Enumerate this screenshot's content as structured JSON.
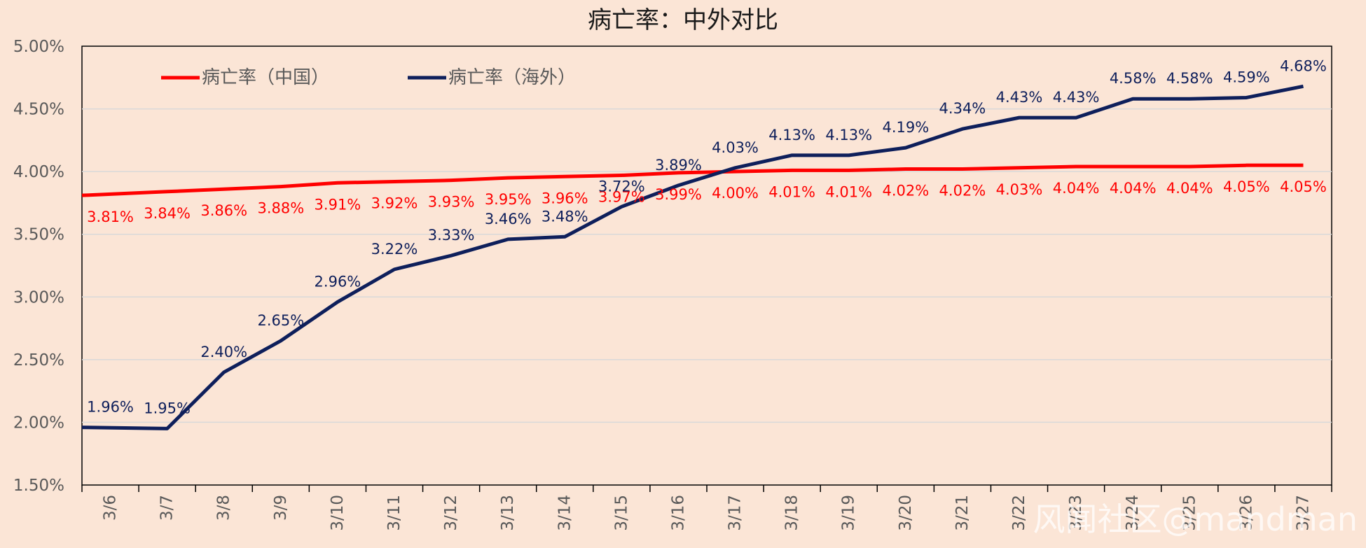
{
  "chart_data": {
    "type": "line",
    "title": "病亡率：中外对比",
    "xlabel": "",
    "ylabel": "",
    "ylim": [
      1.5,
      5.0
    ],
    "ytick_labels": [
      "1.50%",
      "2.00%",
      "2.50%",
      "3.00%",
      "3.50%",
      "4.00%",
      "4.50%",
      "5.00%"
    ],
    "categories": [
      "3/6",
      "3/7",
      "3/8",
      "3/9",
      "3/10",
      "3/11",
      "3/12",
      "3/13",
      "3/14",
      "3/15",
      "3/16",
      "3/17",
      "3/18",
      "3/19",
      "3/20",
      "3/21",
      "3/22",
      "3/23",
      "3/24",
      "3/25",
      "3/26",
      "3/27"
    ],
    "legend_position": "top-left",
    "grid": true,
    "series": [
      {
        "name": "病亡率（中国）",
        "color": "#ff0000",
        "values": [
          3.81,
          3.84,
          3.86,
          3.88,
          3.91,
          3.92,
          3.93,
          3.95,
          3.96,
          3.97,
          3.99,
          4.0,
          4.01,
          4.01,
          4.02,
          4.02,
          4.03,
          4.04,
          4.04,
          4.04,
          4.05,
          4.05
        ],
        "labels": [
          "3.81%",
          "3.84%",
          "3.86%",
          "3.88%",
          "3.91%",
          "3.92%",
          "3.93%",
          "3.95%",
          "3.96%",
          "3.97%",
          "3.99%",
          "4.00%",
          "4.01%",
          "4.01%",
          "4.02%",
          "4.02%",
          "4.03%",
          "4.04%",
          "4.04%",
          "4.04%",
          "4.05%",
          "4.05%"
        ]
      },
      {
        "name": "病亡率（海外）",
        "color": "#0e1f5b",
        "values": [
          1.96,
          1.95,
          2.4,
          2.65,
          2.96,
          3.22,
          3.33,
          3.46,
          3.48,
          3.72,
          3.89,
          4.03,
          4.13,
          4.13,
          4.19,
          4.34,
          4.43,
          4.43,
          4.58,
          4.58,
          4.59,
          4.68
        ],
        "labels": [
          "1.96%",
          "1.95%",
          "2.40%",
          "2.65%",
          "2.96%",
          "3.22%",
          "3.33%",
          "3.46%",
          "3.48%",
          "3.72%",
          "3.89%",
          "4.03%",
          "4.13%",
          "4.13%",
          "4.19%",
          "4.34%",
          "4.43%",
          "4.43%",
          "4.58%",
          "4.58%",
          "4.59%",
          "4.68%"
        ]
      }
    ]
  },
  "watermark": "风闻社区@mandman"
}
